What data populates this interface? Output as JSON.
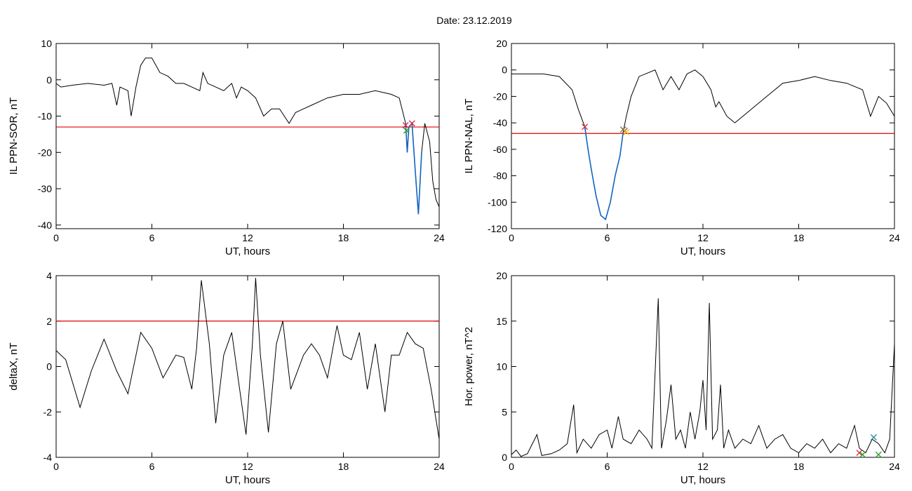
{
  "page_title": "Date:  23.12.2019",
  "colors": {
    "trace": "#000000",
    "threshold": "#e00000",
    "highlight": "#1565c0",
    "marker_red": "#e0203a",
    "marker_green": "#2e9e2e",
    "marker_yellow": "#e0c000",
    "marker_blue": "#1e90a0"
  },
  "chart_data": [
    {
      "type": "line",
      "xlabel": "UT, hours",
      "ylabel": "IL PPN-SOR, nT",
      "xlim": [
        0,
        24
      ],
      "ylim": [
        -41,
        10
      ],
      "xticks": [
        0,
        6,
        12,
        18,
        24
      ],
      "yticks": [
        10,
        0,
        -10,
        -20,
        -30,
        -40
      ],
      "threshold": -13,
      "series": [
        {
          "values": [
            [
              0,
              -1
            ],
            [
              0.3,
              -2
            ],
            [
              1,
              -1.5
            ],
            [
              2,
              -1
            ],
            [
              3,
              -1.5
            ],
            [
              3.5,
              -1
            ],
            [
              3.8,
              -7
            ],
            [
              4,
              -2
            ],
            [
              4.5,
              -3
            ],
            [
              4.7,
              -10
            ],
            [
              5,
              -2
            ],
            [
              5.3,
              4
            ],
            [
              5.6,
              6
            ],
            [
              6,
              6
            ],
            [
              6.5,
              2
            ],
            [
              7,
              1
            ],
            [
              7.5,
              -1
            ],
            [
              8,
              -1
            ],
            [
              8.5,
              -2
            ],
            [
              9,
              -3
            ],
            [
              9.2,
              2
            ],
            [
              9.5,
              -1
            ],
            [
              10,
              -2
            ],
            [
              10.5,
              -3
            ],
            [
              11,
              -1
            ],
            [
              11.3,
              -5
            ],
            [
              11.6,
              -2
            ],
            [
              12,
              -3
            ],
            [
              12.5,
              -5
            ],
            [
              13,
              -10
            ],
            [
              13.5,
              -8
            ],
            [
              14,
              -8
            ],
            [
              14.6,
              -12
            ],
            [
              15,
              -9
            ],
            [
              15.5,
              -8
            ],
            [
              16,
              -7
            ],
            [
              17,
              -5
            ],
            [
              18,
              -4
            ],
            [
              19,
              -4
            ],
            [
              20,
              -3
            ],
            [
              21,
              -4
            ],
            [
              21.5,
              -5
            ],
            [
              21.9,
              -12
            ],
            [
              22.0,
              -20
            ],
            [
              22.1,
              -13
            ],
            [
              22.3,
              -12
            ],
            [
              22.5,
              -25
            ],
            [
              22.7,
              -37
            ],
            [
              22.9,
              -20
            ],
            [
              23.1,
              -12
            ],
            [
              23.4,
              -17
            ],
            [
              23.6,
              -28
            ],
            [
              23.8,
              -33
            ],
            [
              24,
              -35
            ]
          ]
        }
      ],
      "highlight": [
        [
          21.9,
          -12
        ],
        [
          22.0,
          -20
        ],
        [
          22.1,
          -13
        ],
        [
          22.3,
          -12
        ],
        [
          22.5,
          -25
        ],
        [
          22.7,
          -37
        ],
        [
          22.9,
          -20
        ]
      ],
      "markers": [
        {
          "x": 21.9,
          "y": -12.5,
          "color": "marker_red"
        },
        {
          "x": 22.3,
          "y": -12,
          "color": "marker_red"
        },
        {
          "x": 21.95,
          "y": -14,
          "color": "marker_green"
        }
      ]
    },
    {
      "type": "line",
      "xlabel": "UT, hours",
      "ylabel": "IL PPN-NAL, nT",
      "xlim": [
        0,
        24
      ],
      "ylim": [
        -120,
        20
      ],
      "xticks": [
        0,
        6,
        12,
        18,
        24
      ],
      "yticks": [
        20,
        0,
        -20,
        -40,
        -60,
        -80,
        -100,
        -120
      ],
      "threshold": -48,
      "series": [
        {
          "values": [
            [
              0,
              -3
            ],
            [
              1,
              -3
            ],
            [
              2,
              -3
            ],
            [
              3,
              -5
            ],
            [
              3.8,
              -15
            ],
            [
              4.2,
              -30
            ],
            [
              4.6,
              -43
            ],
            [
              4.8,
              -60
            ],
            [
              5,
              -75
            ],
            [
              5.3,
              -95
            ],
            [
              5.6,
              -110
            ],
            [
              5.9,
              -113
            ],
            [
              6.2,
              -100
            ],
            [
              6.5,
              -80
            ],
            [
              6.8,
              -65
            ],
            [
              7,
              -47
            ],
            [
              7.2,
              -35
            ],
            [
              7.5,
              -20
            ],
            [
              8,
              -5
            ],
            [
              9,
              0
            ],
            [
              9.5,
              -15
            ],
            [
              10,
              -5
            ],
            [
              10.5,
              -15
            ],
            [
              11,
              -3
            ],
            [
              11.5,
              0
            ],
            [
              12,
              -5
            ],
            [
              12.5,
              -15
            ],
            [
              12.8,
              -28
            ],
            [
              13,
              -24
            ],
            [
              13.5,
              -35
            ],
            [
              14,
              -40
            ],
            [
              14.5,
              -35
            ],
            [
              15,
              -30
            ],
            [
              16,
              -20
            ],
            [
              17,
              -10
            ],
            [
              18,
              -8
            ],
            [
              19,
              -5
            ],
            [
              20,
              -8
            ],
            [
              21,
              -10
            ],
            [
              22,
              -15
            ],
            [
              22.5,
              -35
            ],
            [
              23,
              -20
            ],
            [
              23.5,
              -25
            ],
            [
              24,
              -35
            ]
          ]
        }
      ],
      "highlight": [
        [
          4.6,
          -43
        ],
        [
          4.8,
          -60
        ],
        [
          5,
          -75
        ],
        [
          5.3,
          -95
        ],
        [
          5.6,
          -110
        ],
        [
          5.9,
          -113
        ],
        [
          6.2,
          -100
        ],
        [
          6.5,
          -80
        ],
        [
          6.8,
          -65
        ],
        [
          7,
          -47
        ]
      ],
      "markers": [
        {
          "x": 4.6,
          "y": -43,
          "color": "marker_red"
        },
        {
          "x": 7.0,
          "y": -45,
          "color": "marker_green"
        },
        {
          "x": 7.1,
          "y": -46,
          "color": "marker_red"
        },
        {
          "x": 7.2,
          "y": -47,
          "color": "marker_yellow"
        }
      ]
    },
    {
      "type": "line",
      "xlabel": "UT, hours",
      "ylabel": "deltaX, nT",
      "xlim": [
        0,
        24
      ],
      "ylim": [
        -4,
        4
      ],
      "xticks": [
        0,
        6,
        12,
        18,
        24
      ],
      "yticks": [
        4,
        2,
        0,
        -2,
        -4
      ],
      "threshold": 2,
      "series": [
        {
          "values": [
            [
              0,
              0.7
            ],
            [
              0.6,
              0.3
            ],
            [
              1.5,
              -1.8
            ],
            [
              2.2,
              -0.2
            ],
            [
              3,
              1.2
            ],
            [
              3.8,
              -0.2
            ],
            [
              4.5,
              -1.2
            ],
            [
              5.3,
              1.5
            ],
            [
              6,
              0.8
            ],
            [
              6.7,
              -0.5
            ],
            [
              7.5,
              0.5
            ],
            [
              8,
              0.4
            ],
            [
              8.5,
              -1
            ],
            [
              8.8,
              0.8
            ],
            [
              9.1,
              3.8
            ],
            [
              9.6,
              1
            ],
            [
              10,
              -2.5
            ],
            [
              10.5,
              0.5
            ],
            [
              11,
              1.5
            ],
            [
              11.5,
              -1
            ],
            [
              11.9,
              -3
            ],
            [
              12.3,
              1
            ],
            [
              12.5,
              3.9
            ],
            [
              12.8,
              0.5
            ],
            [
              13.3,
              -2.9
            ],
            [
              13.8,
              1
            ],
            [
              14.2,
              2
            ],
            [
              14.7,
              -1
            ],
            [
              15.5,
              0.5
            ],
            [
              16,
              1
            ],
            [
              16.5,
              0.5
            ],
            [
              17,
              -0.5
            ],
            [
              17.6,
              1.8
            ],
            [
              18,
              0.5
            ],
            [
              18.5,
              0.3
            ],
            [
              19,
              1.5
            ],
            [
              19.5,
              -1
            ],
            [
              20,
              1
            ],
            [
              20.6,
              -2
            ],
            [
              21,
              0.5
            ],
            [
              21.5,
              0.5
            ],
            [
              22,
              1.5
            ],
            [
              22.5,
              1
            ],
            [
              23,
              0.8
            ],
            [
              23.5,
              -1
            ],
            [
              24,
              -3.2
            ]
          ]
        }
      ],
      "highlight": [],
      "markers": []
    },
    {
      "type": "line",
      "xlabel": "UT, hours",
      "ylabel": "Hor. power, nT^2",
      "xlim": [
        0,
        24
      ],
      "ylim": [
        0,
        20
      ],
      "xticks": [
        0,
        6,
        12,
        18,
        24
      ],
      "yticks": [
        20,
        15,
        10,
        5,
        0
      ],
      "series": [
        {
          "values": [
            [
              0,
              0.3
            ],
            [
              0.3,
              0.8
            ],
            [
              0.6,
              0.1
            ],
            [
              1,
              0.4
            ],
            [
              1.6,
              2.5
            ],
            [
              1.9,
              0.2
            ],
            [
              2.5,
              0.4
            ],
            [
              3,
              0.8
            ],
            [
              3.5,
              1.5
            ],
            [
              3.9,
              5.8
            ],
            [
              4.1,
              0.5
            ],
            [
              4.5,
              2
            ],
            [
              5,
              1
            ],
            [
              5.5,
              2.5
            ],
            [
              6,
              3
            ],
            [
              6.3,
              1
            ],
            [
              6.7,
              4.5
            ],
            [
              7,
              2
            ],
            [
              7.5,
              1.5
            ],
            [
              8,
              3
            ],
            [
              8.5,
              2
            ],
            [
              8.8,
              1
            ],
            [
              9.2,
              17.5
            ],
            [
              9.4,
              1
            ],
            [
              9.7,
              4
            ],
            [
              10,
              8
            ],
            [
              10.3,
              2
            ],
            [
              10.6,
              3
            ],
            [
              10.9,
              1
            ],
            [
              11.2,
              5
            ],
            [
              11.5,
              2
            ],
            [
              11.8,
              5
            ],
            [
              12,
              8.5
            ],
            [
              12.2,
              3
            ],
            [
              12.4,
              17
            ],
            [
              12.6,
              2
            ],
            [
              12.9,
              3
            ],
            [
              13.1,
              8
            ],
            [
              13.3,
              1
            ],
            [
              13.6,
              3
            ],
            [
              14,
              1
            ],
            [
              14.5,
              2
            ],
            [
              15,
              1.5
            ],
            [
              15.5,
              3.5
            ],
            [
              16,
              1
            ],
            [
              16.5,
              2
            ],
            [
              17,
              2.5
            ],
            [
              17.5,
              1
            ],
            [
              18,
              0.5
            ],
            [
              18.5,
              1.5
            ],
            [
              19,
              1
            ],
            [
              19.5,
              2
            ],
            [
              20,
              0.5
            ],
            [
              20.5,
              1.5
            ],
            [
              21,
              1
            ],
            [
              21.5,
              3.5
            ],
            [
              21.8,
              1
            ],
            [
              22.2,
              0.5
            ],
            [
              22.6,
              2
            ],
            [
              23,
              1.5
            ],
            [
              23.4,
              0.5
            ],
            [
              23.7,
              2
            ],
            [
              24,
              12.5
            ]
          ]
        }
      ],
      "highlight": [],
      "markers": [
        {
          "x": 21.8,
          "y": 0.5,
          "color": "marker_red"
        },
        {
          "x": 22.0,
          "y": 0.3,
          "color": "marker_green"
        },
        {
          "x": 22.7,
          "y": 2.2,
          "color": "marker_blue"
        },
        {
          "x": 23.0,
          "y": 0.3,
          "color": "marker_green"
        }
      ]
    }
  ]
}
